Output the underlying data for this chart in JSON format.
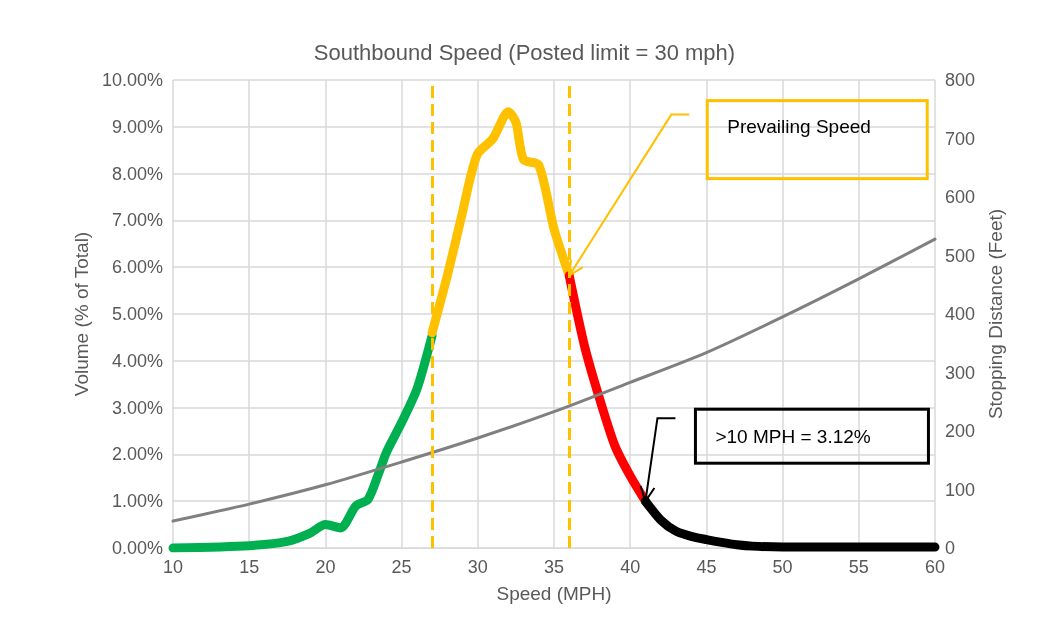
{
  "chart_data": {
    "type": "line",
    "title": "Southbound Speed (Posted limit = 30 mph)",
    "xlabel": "Speed (MPH)",
    "ylabel": "Volume (% of Total)",
    "y2label": "Stopping Distance (Feet)",
    "series": [
      {
        "color": "#00b050",
        "x": [
          10,
          15,
          17.5,
          19,
          20,
          21,
          22,
          22.8,
          23.5,
          24,
          25,
          26,
          27
        ],
        "values": [
          0,
          0.05,
          0.14,
          0.32,
          0.5,
          0.43,
          0.9,
          1.04,
          1.6,
          2.04,
          2.68,
          3.39,
          4.54
        ]
      },
      {
        "color": "#ffc000",
        "x": [
          27,
          28,
          29,
          29.5,
          30,
          31,
          32,
          32.5,
          33,
          34,
          35,
          36
        ],
        "values": [
          4.6,
          5.82,
          7.18,
          7.9,
          8.43,
          8.75,
          9.32,
          9.1,
          8.3,
          8.18,
          6.82,
          5.82
        ]
      },
      {
        "color": "#ff0000",
        "x": [
          36,
          37,
          38,
          39,
          40,
          41
        ],
        "values": [
          5.82,
          4.32,
          3.18,
          2.18,
          1.54,
          1.0
        ]
      },
      {
        "color": "#000000",
        "x": [
          41,
          42,
          43,
          44,
          45,
          46,
          47,
          48,
          50,
          55,
          60
        ],
        "values": [
          1.0,
          0.6,
          0.36,
          0.25,
          0.18,
          0.12,
          0.07,
          0.04,
          0.02,
          0.02,
          0.02
        ]
      },
      {
        "color": "#808080",
        "axis": "y2",
        "x": [
          10,
          15,
          20,
          25,
          30,
          35,
          40,
          45,
          50,
          55,
          60
        ],
        "values": [
          46,
          75,
          108,
          147,
          188,
          233,
          283,
          334,
          395,
          460,
          528
        ]
      }
    ],
    "xlim": [
      10,
      60
    ],
    "xticks": [
      10,
      15,
      20,
      25,
      30,
      35,
      40,
      45,
      50,
      55,
      60
    ],
    "ylim": [
      0,
      10
    ],
    "yticks": [
      {
        "value": 0,
        "label": "0.00%"
      },
      {
        "value": 1,
        "label": "1.00%"
      },
      {
        "value": 2,
        "label": "2.00%"
      },
      {
        "value": 3,
        "label": "3.00%"
      },
      {
        "value": 4,
        "label": "4.00%"
      },
      {
        "value": 5,
        "label": "5.00%"
      },
      {
        "value": 6,
        "label": "6.00%"
      },
      {
        "value": 7,
        "label": "7.00%"
      },
      {
        "value": 8,
        "label": "8.00%"
      },
      {
        "value": 9,
        "label": "9.00%"
      },
      {
        "value": 10,
        "label": "10.00%"
      }
    ],
    "y2lim": [
      0,
      800
    ],
    "y2ticks": [
      0,
      100,
      200,
      300,
      400,
      500,
      600,
      700,
      800
    ],
    "ref_lines": [
      {
        "axis": "x",
        "value": 27,
        "color": "#ffc000",
        "line_style": "dashed"
      },
      {
        "axis": "x",
        "value": 36,
        "color": "#ffc000",
        "line_style": "dashed"
      }
    ],
    "annotations": [
      "Prevailing Speed",
      ">10 MPH = 3.12%"
    ],
    "grid": true,
    "marker": "none",
    "line_style": "solid"
  }
}
